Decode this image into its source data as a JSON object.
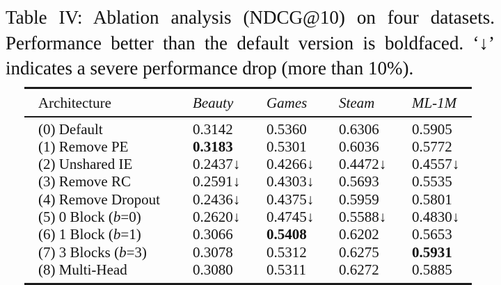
{
  "caption": {
    "line1": "Table IV: Ablation analysis (NDCG@10) on four datasets.",
    "line2": "Performance better than the default version is boldfaced. ‘↓’",
    "line3": "indicates a severe performance drop (more than 10%)."
  },
  "table": {
    "columns": [
      "Architecture",
      "Beauty",
      "Games",
      "Steam",
      "ML-1M"
    ],
    "rows": [
      {
        "label": "(0) Default",
        "values": [
          "0.3142",
          "0.5360",
          "0.6306",
          "0.5905"
        ],
        "bold": []
      },
      {
        "label": "(1) Remove PE",
        "values": [
          "0.3183",
          "0.5301",
          "0.6036",
          "0.5772"
        ],
        "bold": [
          0
        ]
      },
      {
        "label": "(2) Unshared IE",
        "values": [
          "0.2437↓",
          "0.4266↓",
          "0.4472↓",
          "0.4557↓"
        ],
        "bold": []
      },
      {
        "label": "(3) Remove RC",
        "values": [
          "0.2591↓",
          "0.4303↓",
          "0.5693",
          "0.5535"
        ],
        "bold": []
      },
      {
        "label": "(4) Remove Dropout",
        "values": [
          "0.2436↓",
          "0.4375↓",
          "0.5959",
          "0.5801"
        ],
        "bold": []
      },
      {
        "label": "(5) 0 Block (*b*=0)",
        "values": [
          "0.2620↓",
          "0.4745↓",
          "0.5588↓",
          "0.4830↓"
        ],
        "bold": []
      },
      {
        "label": "(6) 1 Block (*b*=1)",
        "values": [
          "0.3066",
          "0.5408",
          "0.6202",
          "0.5653"
        ],
        "bold": [
          1
        ]
      },
      {
        "label": "(7) 3 Blocks (*b*=3)",
        "values": [
          "0.3078",
          "0.5312",
          "0.6275",
          "0.5931"
        ],
        "bold": [
          3
        ]
      },
      {
        "label": "(8) Multi-Head",
        "values": [
          "0.3080",
          "0.5311",
          "0.6272",
          "0.5885"
        ],
        "bold": []
      }
    ]
  }
}
